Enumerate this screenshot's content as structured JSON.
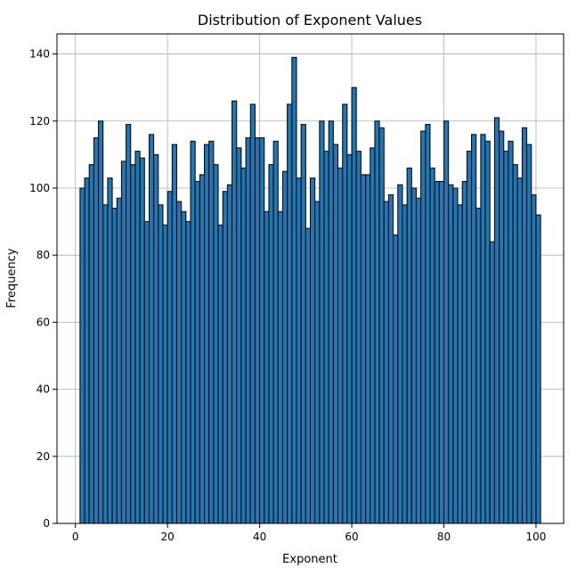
{
  "chart_data": {
    "type": "bar",
    "title": "Distribution of Exponent Values",
    "xlabel": "Exponent",
    "ylabel": "Frequency",
    "xlim": [
      -4,
      106
    ],
    "ylim": [
      0,
      146
    ],
    "xticks": [
      0,
      20,
      40,
      60,
      80,
      100
    ],
    "yticks": [
      0,
      20,
      40,
      60,
      80,
      100,
      120,
      140
    ],
    "grid": true,
    "bar_color": "#1f77b4",
    "edge_color": "#000000",
    "bin_start": 1,
    "bin_width": 1,
    "values": [
      100,
      103,
      107,
      115,
      120,
      95,
      103,
      94,
      97,
      108,
      119,
      107,
      111,
      109,
      90,
      116,
      110,
      95,
      89,
      99,
      113,
      96,
      93,
      90,
      114,
      102,
      104,
      113,
      114,
      107,
      89,
      99,
      101,
      126,
      112,
      106,
      115,
      125,
      115,
      115,
      93,
      107,
      114,
      93,
      105,
      125,
      139,
      103,
      119,
      88,
      103,
      96,
      120,
      111,
      120,
      113,
      106,
      125,
      110,
      130,
      111,
      104,
      104,
      112,
      120,
      118,
      96,
      98,
      86,
      101,
      95,
      106,
      100,
      97,
      117,
      119,
      106,
      102,
      102,
      120,
      101,
      100,
      95,
      102,
      111,
      116,
      94,
      116,
      114,
      84,
      121,
      117,
      111,
      114,
      107,
      103,
      118,
      113,
      98,
      92
    ]
  }
}
